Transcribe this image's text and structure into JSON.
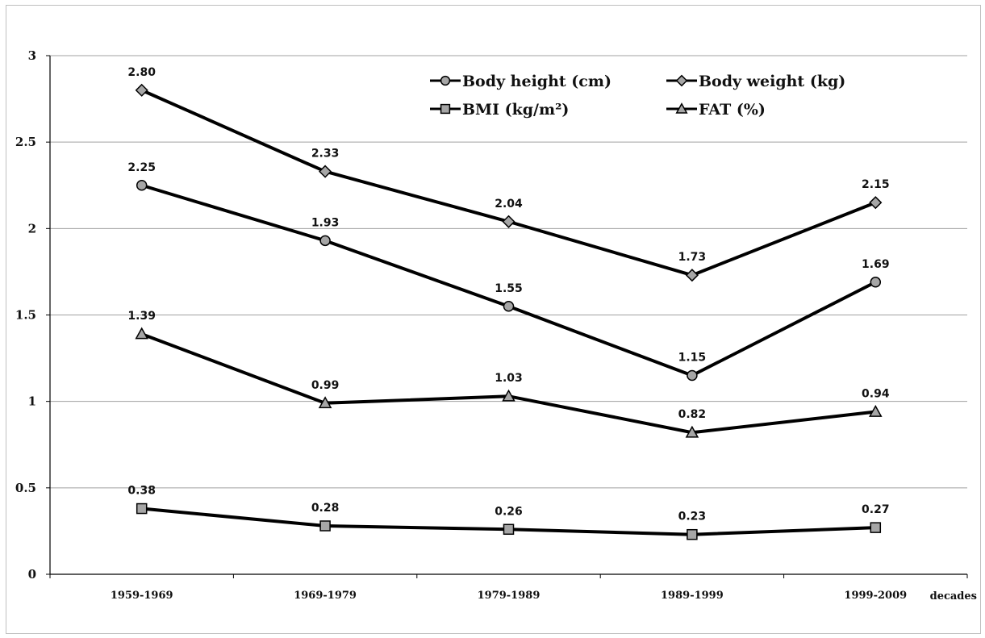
{
  "chart_data": {
    "type": "line",
    "categories": [
      "1959-1969",
      "1969-1979",
      "1979-1989",
      "1989-1999",
      "1999-2009"
    ],
    "xlabel": "decades",
    "ylim": [
      0,
      3
    ],
    "yticks": [
      "0",
      "0.5",
      "1",
      "1.5",
      "2",
      "2.5",
      "3"
    ],
    "grid": "horizontal",
    "legend_position": "top-right",
    "series": [
      {
        "name": "Body height (cm)",
        "marker": "circle",
        "values": [
          2.25,
          1.93,
          1.55,
          1.15,
          1.69
        ],
        "labels": [
          "2.25",
          "1.93",
          "1.55",
          "1.15",
          "1.69"
        ]
      },
      {
        "name": "Body weight (kg)",
        "marker": "diamond",
        "values": [
          2.8,
          2.33,
          2.04,
          1.73,
          2.15
        ],
        "labels": [
          "2.80",
          "2.33",
          "2.04",
          "1.73",
          "2.15"
        ]
      },
      {
        "name": "BMI (kg/m²)",
        "marker": "square",
        "values": [
          0.38,
          0.28,
          0.26,
          0.23,
          0.27
        ],
        "labels": [
          "0.38",
          "0.28",
          "0.26",
          "0.23",
          "0.27"
        ]
      },
      {
        "name": "FAT (%)",
        "marker": "triangle",
        "values": [
          1.39,
          0.99,
          1.03,
          0.82,
          0.94
        ],
        "labels": [
          "1.39",
          "0.99",
          "1.03",
          "0.82",
          "0.94"
        ]
      }
    ],
    "colors": {
      "line": "#000000",
      "marker_fill": "#a6a6a6",
      "grid": "#a0a0a0"
    }
  }
}
